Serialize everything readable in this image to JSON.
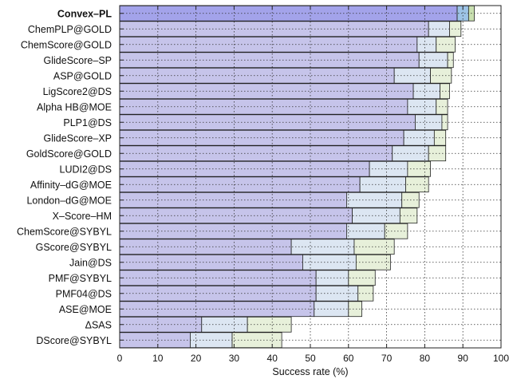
{
  "chart_data": {
    "type": "bar",
    "orientation": "horizontal",
    "stacked": true,
    "xlabel": "Success rate (%)",
    "xlim": [
      0,
      100
    ],
    "xticks": [
      0,
      10,
      20,
      30,
      40,
      50,
      60,
      70,
      80,
      90,
      100
    ],
    "grid": "dotted",
    "legend": "none",
    "bold_categories": [
      "Convex–PL"
    ],
    "categories": [
      "Convex–PL",
      "ChemPLP@GOLD",
      "ChemScore@GOLD",
      "GlideScore–SP",
      "ASP@GOLD",
      "LigScore2@DS",
      "Alpha HB@MOE",
      "PLP1@DS",
      "GlideScore–XP",
      "GoldScore@GOLD",
      "LUDI2@DS",
      "Affinity–dG@MOE",
      "London–dG@MOE",
      "X–Score–HM",
      "ChemScore@SYBYL",
      "GScore@SYBYL",
      "Jain@DS",
      "PMF@SYBYL",
      "PMF04@DS",
      "ASE@MOE",
      "ΔSAS",
      "DScore@SYBYL"
    ],
    "series": [
      {
        "color": "#c6c4ea",
        "highlight_color": "#a3a3ea",
        "cumulative_values": [
          88.5,
          81.0,
          78.0,
          78.5,
          72.0,
          77.0,
          75.5,
          77.5,
          74.5,
          71.5,
          65.5,
          63.0,
          59.5,
          61.0,
          59.5,
          45.0,
          48.0,
          51.5,
          51.5,
          51.0,
          21.5,
          18.5
        ]
      },
      {
        "color": "#dce6f2",
        "highlight_color": "#9dc3e6",
        "cumulative_values": [
          91.5,
          86.5,
          83.0,
          86.0,
          81.5,
          84.0,
          83.0,
          84.5,
          82.5,
          81.0,
          75.5,
          75.0,
          74.0,
          73.5,
          69.5,
          61.5,
          62.0,
          60.0,
          62.5,
          60.0,
          33.5,
          29.5
        ]
      },
      {
        "color": "#e7f0da",
        "highlight_color": "#c9e0b0",
        "cumulative_values": [
          93.0,
          89.5,
          88.0,
          87.5,
          87.0,
          86.5,
          86.0,
          86.0,
          85.5,
          85.5,
          81.5,
          81.0,
          78.5,
          78.0,
          75.5,
          72.0,
          71.0,
          67.0,
          66.5,
          63.5,
          45.0,
          42.5
        ]
      }
    ]
  }
}
